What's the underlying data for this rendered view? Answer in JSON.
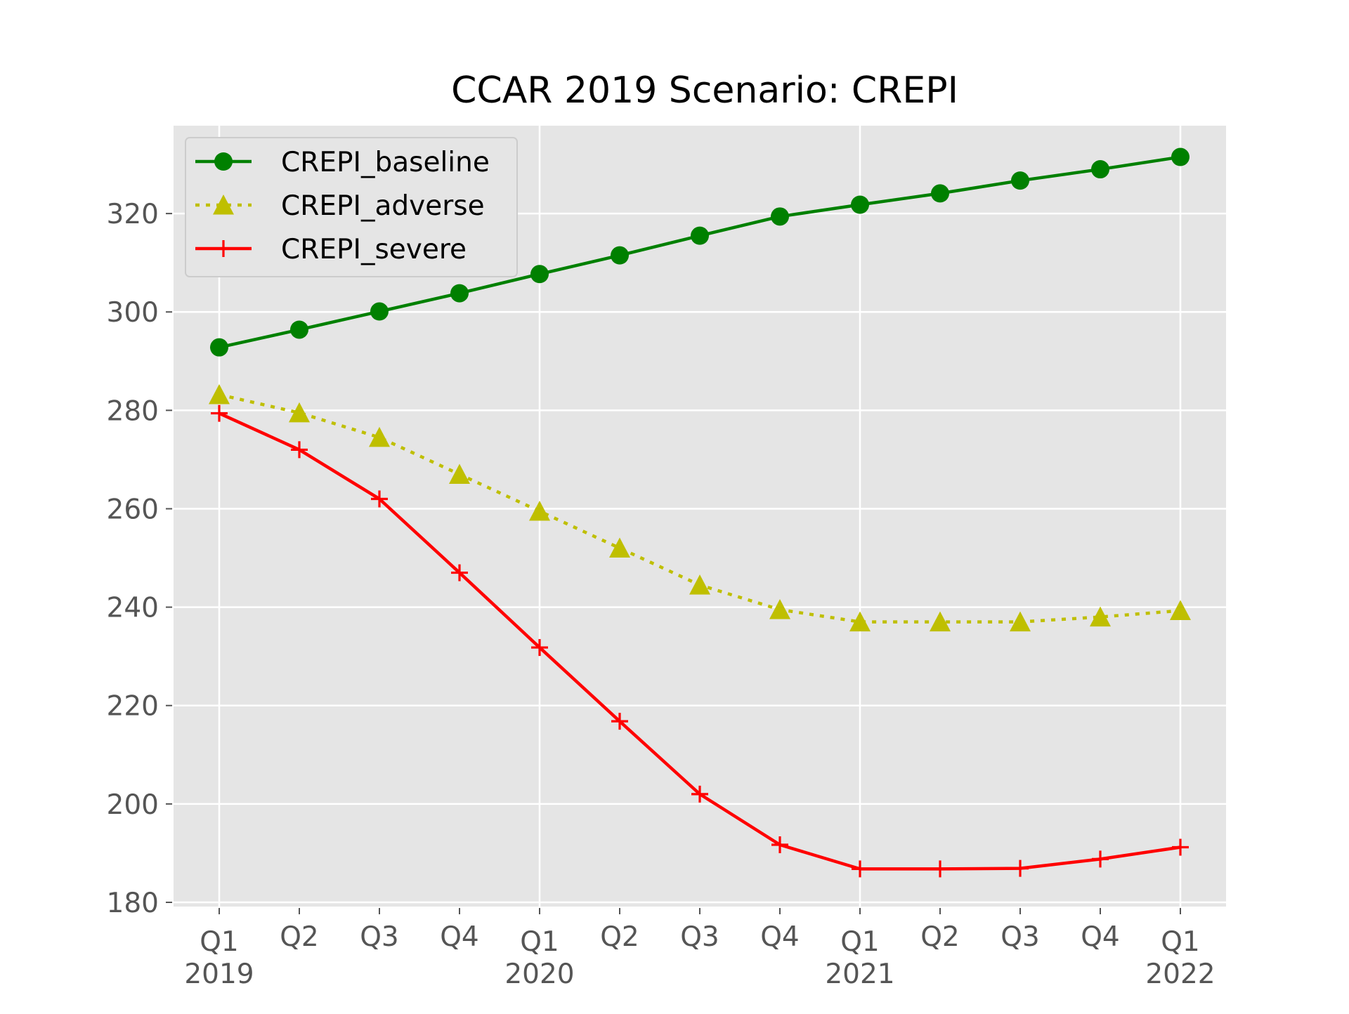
{
  "chart_data": {
    "type": "line",
    "title": "CCAR 2019 Scenario: CREPI",
    "xlabel": "",
    "ylabel": "",
    "categories": [
      "Q1\n2019",
      "Q2",
      "Q3",
      "Q4",
      "Q1\n2020",
      "Q2",
      "Q3",
      "Q4",
      "Q1\n2021",
      "Q2",
      "Q3",
      "Q4",
      "Q1\n2022"
    ],
    "ylim": [
      179,
      338
    ],
    "yticks": [
      180,
      200,
      220,
      240,
      260,
      280,
      300,
      320
    ],
    "grid": true,
    "legend_position": "top-left",
    "series": [
      {
        "name": "CREPI_baseline",
        "color": "#008000",
        "linestyle": "solid",
        "marker": "circle",
        "values": [
          292.8,
          296.4,
          300.1,
          303.8,
          307.7,
          311.5,
          315.5,
          319.4,
          321.8,
          324.1,
          326.7,
          329.0,
          331.5
        ]
      },
      {
        "name": "CREPI_adverse",
        "color": "#bfbf00",
        "linestyle": "dotted",
        "marker": "triangle",
        "values": [
          283.2,
          279.5,
          274.5,
          267.0,
          259.5,
          252.0,
          244.5,
          239.5,
          237.0,
          237.0,
          237.0,
          238.0,
          239.3
        ]
      },
      {
        "name": "CREPI_severe",
        "color": "#ff0000",
        "linestyle": "solid",
        "marker": "plus",
        "values": [
          279.4,
          272.0,
          262.0,
          247.0,
          231.8,
          216.8,
          202.0,
          191.7,
          186.8,
          186.8,
          186.9,
          188.8,
          191.2
        ]
      }
    ]
  }
}
